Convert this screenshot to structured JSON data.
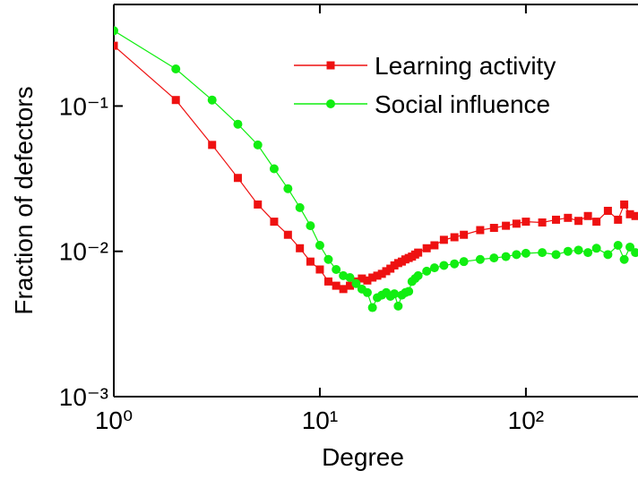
{
  "chart_data": {
    "type": "line",
    "xlabel": "Degree",
    "ylabel": "Fraction of defectors",
    "xlog": true,
    "ylog": true,
    "xlim": [
      1,
      350
    ],
    "ylim": [
      0.001,
      0.5
    ],
    "xticks": [
      {
        "value": 1,
        "label": "10⁰"
      },
      {
        "value": 10,
        "label": "10¹"
      },
      {
        "value": 100,
        "label": "10²"
      }
    ],
    "yticks": [
      {
        "value": 0.001,
        "label": "10⁻³"
      },
      {
        "value": 0.01,
        "label": "10⁻²"
      },
      {
        "value": 0.1,
        "label": "10⁻¹"
      }
    ],
    "legend": "top right",
    "x": [
      1,
      2,
      3,
      4,
      5,
      6,
      7,
      8,
      9,
      10,
      11,
      12,
      13,
      14,
      15,
      16,
      17,
      18,
      19,
      20,
      21,
      22,
      23,
      24,
      25,
      26,
      27,
      28,
      29,
      30,
      33,
      36,
      40,
      45,
      50,
      60,
      70,
      80,
      90,
      100,
      120,
      140,
      160,
      180,
      200,
      220,
      250,
      280,
      300,
      320,
      340
    ],
    "series": [
      {
        "name": "Learning activity",
        "color": "#ee1111",
        "marker": "square",
        "values": [
          0.26,
          0.11,
          0.054,
          0.032,
          0.021,
          0.016,
          0.013,
          0.0105,
          0.0085,
          0.0075,
          0.0062,
          0.0058,
          0.0055,
          0.0058,
          0.0062,
          0.0065,
          0.0063,
          0.0066,
          0.0068,
          0.007,
          0.0073,
          0.0076,
          0.008,
          0.0083,
          0.0085,
          0.0088,
          0.009,
          0.0092,
          0.0095,
          0.0098,
          0.0105,
          0.011,
          0.012,
          0.0125,
          0.013,
          0.014,
          0.0145,
          0.015,
          0.0155,
          0.016,
          0.0158,
          0.0165,
          0.017,
          0.0162,
          0.0175,
          0.016,
          0.019,
          0.0165,
          0.021,
          0.018,
          0.0175
        ]
      },
      {
        "name": "Social influence",
        "color": "#11ee11",
        "marker": "circle",
        "values": [
          0.33,
          0.18,
          0.11,
          0.075,
          0.054,
          0.037,
          0.027,
          0.02,
          0.015,
          0.011,
          0.0088,
          0.0075,
          0.0068,
          0.0066,
          0.006,
          0.0055,
          0.0052,
          0.0041,
          0.0048,
          0.005,
          0.0052,
          0.0049,
          0.0051,
          0.0042,
          0.005,
          0.0052,
          0.0053,
          0.0062,
          0.0065,
          0.0068,
          0.0073,
          0.0077,
          0.008,
          0.0082,
          0.0085,
          0.0088,
          0.009,
          0.0092,
          0.0095,
          0.0097,
          0.0098,
          0.0095,
          0.01,
          0.0102,
          0.0098,
          0.0105,
          0.0095,
          0.011,
          0.0088,
          0.0107,
          0.0098
        ]
      }
    ]
  }
}
